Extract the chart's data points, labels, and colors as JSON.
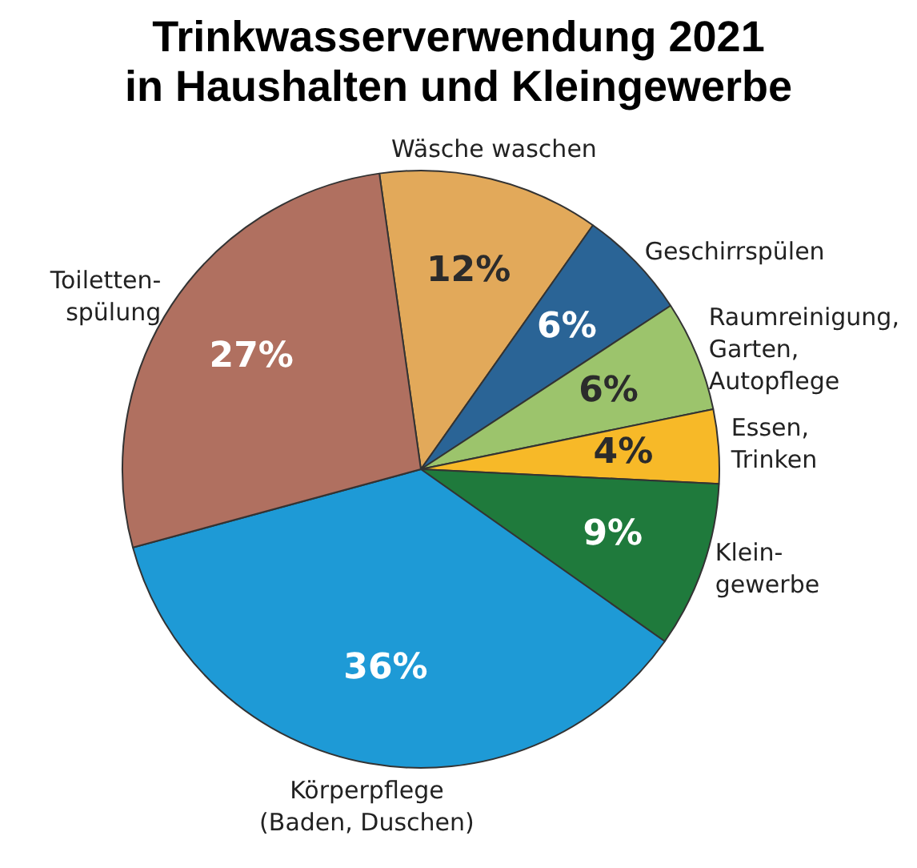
{
  "chart_data": {
    "type": "pie",
    "title": "Trinkwasserverwendung 2021\nin Haushalten und Kleingewerbe",
    "categories": [
      "Wäsche waschen",
      "Geschirrspülen",
      "Raumreinigung,\nGarten,\nAutopflege",
      "Essen,\nTrinken",
      "Klein-\ngewerbe",
      "Körperpflege\n(Baden, Duschen)",
      "Toiletten-\nspülung"
    ],
    "values": [
      12,
      6,
      6,
      4,
      9,
      36,
      27
    ],
    "value_labels": [
      "12%",
      "6%",
      "6%",
      "4%",
      "9%",
      "36%",
      "27%"
    ],
    "colors": [
      "#e2a95a",
      "#2a6496",
      "#9cc46c",
      "#f7b928",
      "#1f7a3c",
      "#1e9ad6",
      "#b07060"
    ],
    "legend": false
  }
}
